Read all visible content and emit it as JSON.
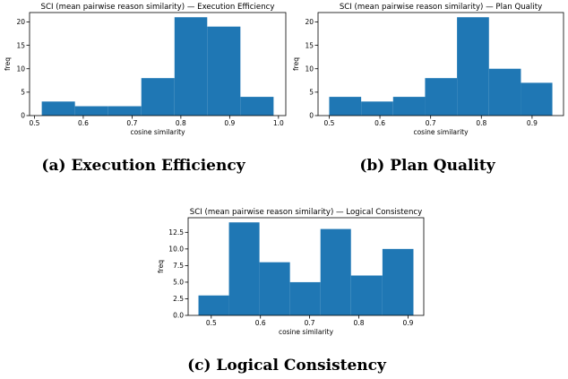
{
  "captions": {
    "a": "(a) Execution Efficiency",
    "b": "(b) Plan Quality",
    "c": "(c) Logical Consistency"
  },
  "chart_data": [
    {
      "type": "histogram",
      "title": "SCI (mean pairwise reason similarity) — Execution Efficiency",
      "xlabel": "cosine similarity",
      "ylabel": "freq",
      "xlim": [
        0.49,
        1.015
      ],
      "ylim": [
        0,
        22
      ],
      "xticks": [
        0.5,
        0.6,
        0.7,
        0.8,
        0.9,
        1.0
      ],
      "xtick_labels": [
        "0.5",
        "0.6",
        "0.7",
        "0.8",
        "0.9",
        "1.0"
      ],
      "yticks": [
        0,
        5,
        10,
        15,
        20
      ],
      "ytick_labels": [
        "0",
        "5",
        "10",
        "15",
        "20"
      ],
      "bin_edges": [
        0.515,
        0.583,
        0.651,
        0.719,
        0.787,
        0.854,
        0.922,
        0.99
      ],
      "counts": [
        3,
        2,
        2,
        8,
        21,
        19,
        4
      ],
      "color": "#1f77b4"
    },
    {
      "type": "histogram",
      "title": "SCI (mean pairwise reason similarity) — Plan Quality",
      "xlabel": "cosine similarity",
      "ylabel": "freq",
      "xlim": [
        0.478,
        0.962
      ],
      "ylim": [
        0,
        22
      ],
      "xticks": [
        0.5,
        0.6,
        0.7,
        0.8,
        0.9
      ],
      "xtick_labels": [
        "0.5",
        "0.6",
        "0.7",
        "0.8",
        "0.9"
      ],
      "yticks": [
        0,
        5,
        10,
        15,
        20
      ],
      "ytick_labels": [
        "0",
        "5",
        "10",
        "15",
        "20"
      ],
      "bin_edges": [
        0.5,
        0.563,
        0.626,
        0.689,
        0.752,
        0.815,
        0.878,
        0.94
      ],
      "counts": [
        4,
        3,
        4,
        8,
        21,
        10,
        7
      ],
      "color": "#1f77b4"
    },
    {
      "type": "histogram",
      "title": "SCI (mean pairwise reason similarity) — Logical Consistency",
      "xlabel": "cosine similarity",
      "ylabel": "freq",
      "xlim": [
        0.453,
        0.932
      ],
      "ylim": [
        0,
        14.7
      ],
      "xticks": [
        0.5,
        0.6,
        0.7,
        0.8,
        0.9
      ],
      "xtick_labels": [
        "0.5",
        "0.6",
        "0.7",
        "0.8",
        "0.9"
      ],
      "yticks": [
        0,
        2.5,
        5,
        7.5,
        10,
        12.5
      ],
      "ytick_labels": [
        "0.0",
        "2.5",
        "5.0",
        "7.5",
        "10.0",
        "12.5"
      ],
      "bin_edges": [
        0.474,
        0.536,
        0.598,
        0.66,
        0.722,
        0.784,
        0.848,
        0.911
      ],
      "counts": [
        3,
        14,
        8,
        5,
        13,
        6,
        10
      ],
      "color": "#1f77b4"
    }
  ]
}
